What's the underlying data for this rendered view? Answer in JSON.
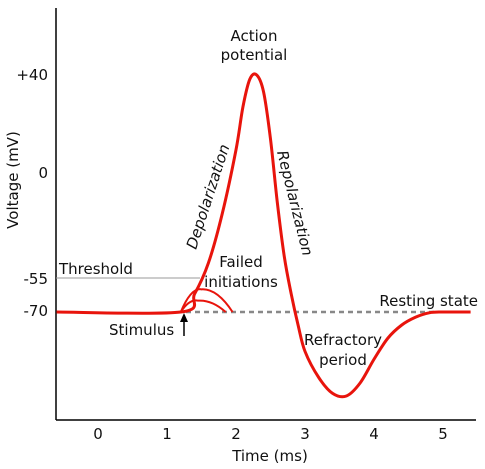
{
  "chart_data": {
    "type": "line",
    "xlabel": "Time (ms)",
    "ylabel": "Voltage (mV)",
    "x_ticks": [
      "0",
      "1",
      "2",
      "3",
      "4",
      "5"
    ],
    "y_ticks": [
      "+40",
      "0",
      "-55",
      "-70"
    ],
    "threshold_value": -55,
    "resting_value": -70,
    "series": [
      {
        "name": "",
        "color": "#e8140c",
        "points": [
          [
            -0.6,
            -70
          ],
          [
            1.2,
            -70
          ],
          [
            1.4,
            -62
          ],
          [
            1.6,
            -48
          ],
          [
            1.8,
            -25
          ],
          [
            2.0,
            5
          ],
          [
            2.1,
            25
          ],
          [
            2.2,
            38
          ],
          [
            2.3,
            40
          ],
          [
            2.4,
            32
          ],
          [
            2.5,
            10
          ],
          [
            2.6,
            -20
          ],
          [
            2.7,
            -45
          ],
          [
            2.8,
            -62
          ],
          [
            2.9,
            -75
          ],
          [
            3.0,
            -85
          ],
          [
            3.2,
            -95
          ],
          [
            3.4,
            -101
          ],
          [
            3.6,
            -102
          ],
          [
            3.8,
            -97
          ],
          [
            4.0,
            -88
          ],
          [
            4.2,
            -80
          ],
          [
            4.4,
            -75
          ],
          [
            4.6,
            -72
          ],
          [
            4.8,
            -70.3
          ],
          [
            5.0,
            -70
          ],
          [
            5.4,
            -70
          ]
        ]
      }
    ],
    "failed_initiations": [
      {
        "peak_value": -60,
        "start": 1.2,
        "peak_time": 1.5,
        "end": 1.95
      },
      {
        "peak_value": -65,
        "start": 1.2,
        "peak_time": 1.45,
        "end": 1.85
      }
    ]
  },
  "labels": {
    "action_potential_line1": "Action",
    "action_potential_line2": "potential",
    "depolarization": "Depolarization",
    "repolarization": "Repolarization",
    "threshold": "Threshold",
    "failed_line1": "Failed",
    "failed_line2": "initiations",
    "resting_state": "Resting state",
    "stimulus": "Stimulus",
    "refractory_line1": "Refractory",
    "refractory_line2": "period"
  },
  "colors": {
    "curve": "#e8140c",
    "dashed": "#888888",
    "threshold_line": "#999999",
    "axis": "#000000"
  }
}
